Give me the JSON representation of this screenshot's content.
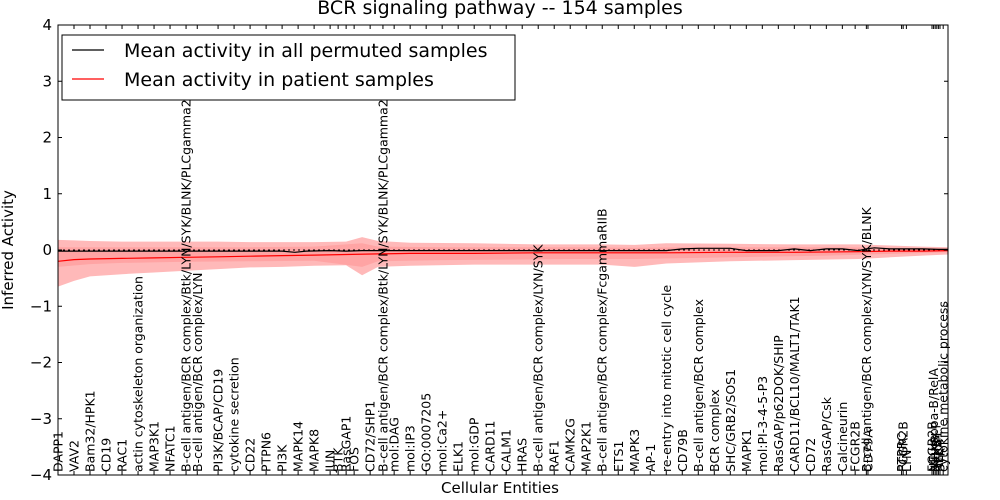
{
  "chart_data": {
    "type": "line",
    "title": "BCR signaling pathway -- 154 samples",
    "xlabel": "Cellular Entities",
    "ylabel": "Inferred Activity",
    "ylim": [
      -4,
      4
    ],
    "yticks": [
      "4",
      "3",
      "2",
      "1",
      "0",
      "−1",
      "−2",
      "−3",
      "−4"
    ],
    "ytick_values": [
      4,
      3,
      2,
      1,
      0,
      -1,
      -2,
      -3,
      -4
    ],
    "zero_line": "dotted",
    "legend": {
      "placement": "top-left",
      "entries": [
        {
          "label": "Mean activity in all permuted samples",
          "color": "#000000"
        },
        {
          "label": "Mean activity in patient samples",
          "color": "#ff0000"
        }
      ]
    },
    "colors": {
      "band": "#ff7f7f",
      "patient": "#ff0000",
      "permuted": "#000000"
    },
    "categories": [
      "DAPP1",
      "VAV2",
      "Bam32/HPK1",
      "CD19",
      "RAC1",
      "actin cytoskeleton organization",
      "MAP3K1",
      "NFATC1",
      "B-cell antigen/BCR complex/Btk/LYN/SYK/BLNK/PLCgamma2",
      "B-cell antigen/BCR complex/LYN",
      "PI3K/BCAP/CD19",
      "cytokine secretion",
      "CD22",
      "PTPN6",
      "PI3K",
      "MAPK14",
      "MAPK8",
      "JUN",
      "BTK",
      "RasGAP1",
      "FOS",
      "CD72/SHP1",
      "B-cell antigen/BCR complex/Btk/LYN/SYK/BLNK/PLCgamma2",
      "mol:DAG",
      "mol:IP3",
      "GO:0007205",
      "mol:Ca2+",
      "ELK1",
      "mol:GDP",
      "CARD11",
      "CALM1",
      "HRAS",
      "B-cell antigen/BCR complex/LYN/SYK",
      "RAF1",
      "CAMK2G",
      "MAP2K1",
      "B-cell antigen/BCR complex/FcgammaRIIB",
      "ETS1",
      "MAPK3",
      "AP-1",
      "re-entry into mitotic cell cycle",
      "CD79B",
      "B-cell antigen/BCR complex",
      "BCR complex",
      "SHC/GRB2/SOS1",
      "MAPK1",
      "mol:PI-3-4-5-P3",
      "RasGAP/p62DOK/SHIP",
      "CARD11/BCL10/MALT1/TAK1",
      "CD72",
      "RasGAP/Csk",
      "Calcineurin",
      "FCGR2B",
      "B-cell antigen/BCR complex/LYN/SYK/BLNK",
      "CD79A",
      "PTPRC",
      "FCGR2B",
      "LYN",
      "FCGR2B",
      "NF-kappa-B/RelA",
      "IKBKB",
      "NFKB1",
      "RELA",
      "SYK",
      "cytokine metabolic process"
    ],
    "category_positions": [
      0,
      1,
      2,
      3,
      4,
      5,
      6,
      7,
      8,
      8.7,
      10,
      11,
      12,
      13,
      14,
      15,
      16,
      17,
      17.5,
      18,
      18.5,
      19.5,
      20.3,
      21,
      22,
      23,
      24,
      25,
      26,
      27,
      28,
      29,
      30,
      31,
      32,
      33,
      34,
      35,
      36,
      37,
      38,
      39,
      40,
      41,
      42,
      43,
      44,
      45,
      46,
      47,
      48,
      49,
      49.8,
      50.5,
      50.6,
      52.7,
      52.8,
      53,
      54.6,
      54.7,
      54.8,
      54.9,
      55.0,
      55.1,
      55.3
    ],
    "xlim": [
      0,
      55.6
    ],
    "series": [
      {
        "name": "Mean activity in all permuted samples",
        "x": [
          0,
          2,
          4,
          6,
          8,
          10,
          12,
          14,
          14.8,
          15.5,
          17,
          18,
          19,
          20,
          22,
          24,
          26,
          28,
          30,
          32,
          34,
          36,
          38,
          39,
          40,
          41,
          42,
          43,
          44,
          45,
          46,
          47,
          48,
          49,
          50,
          50.5,
          51,
          52,
          53,
          54,
          55,
          55.6
        ],
        "values": [
          -0.02,
          -0.02,
          -0.02,
          -0.02,
          -0.02,
          -0.02,
          -0.02,
          -0.02,
          -0.04,
          -0.02,
          -0.01,
          -0.02,
          -0.01,
          -0.01,
          -0.01,
          -0.01,
          -0.01,
          -0.01,
          -0.01,
          -0.01,
          -0.01,
          -0.01,
          -0.01,
          0.02,
          0.03,
          0.03,
          0.03,
          -0.01,
          -0.01,
          -0.01,
          0.02,
          -0.01,
          0.02,
          0.02,
          -0.01,
          0.02,
          0.04,
          0.02,
          0.02,
          0.02,
          0.01,
          0.01
        ]
      },
      {
        "name": "Mean activity in patient samples",
        "x": [
          0,
          1,
          2,
          4,
          6,
          8,
          10,
          12,
          14,
          16,
          18,
          20,
          22,
          26,
          30,
          34,
          38,
          42,
          46,
          50,
          52,
          54,
          55.6
        ],
        "values": [
          -0.2,
          -0.17,
          -0.16,
          -0.15,
          -0.14,
          -0.13,
          -0.12,
          -0.11,
          -0.1,
          -0.09,
          -0.08,
          -0.07,
          -0.06,
          -0.06,
          -0.05,
          -0.05,
          -0.05,
          -0.04,
          -0.04,
          -0.03,
          -0.02,
          -0.02,
          -0.01
        ]
      }
    ],
    "bands": [
      {
        "name": "patient outer band",
        "x": [
          0,
          1,
          2,
          4,
          6,
          8,
          10,
          12,
          14,
          16,
          18,
          19,
          20,
          22,
          26,
          30,
          34,
          36,
          38,
          42,
          46,
          50,
          52,
          54,
          55.6
        ],
        "upper": [
          0.18,
          0.17,
          0.16,
          0.15,
          0.15,
          0.15,
          0.15,
          0.14,
          0.14,
          0.14,
          0.15,
          0.23,
          0.16,
          0.13,
          0.12,
          0.1,
          0.1,
          0.09,
          0.12,
          0.11,
          0.1,
          0.1,
          0.08,
          0.06,
          0.05
        ],
        "lower": [
          -0.65,
          -0.55,
          -0.47,
          -0.43,
          -0.4,
          -0.37,
          -0.34,
          -0.31,
          -0.3,
          -0.28,
          -0.27,
          -0.45,
          -0.3,
          -0.28,
          -0.26,
          -0.26,
          -0.26,
          -0.3,
          -0.24,
          -0.2,
          -0.18,
          -0.16,
          -0.13,
          -0.1,
          -0.08
        ]
      },
      {
        "name": "patient inner band",
        "x": [
          0,
          2,
          4,
          8,
          12,
          16,
          19,
          20,
          24,
          28,
          32,
          36,
          40,
          44,
          48,
          52,
          55.6
        ],
        "upper": [
          0.05,
          0.05,
          0.05,
          0.05,
          0.05,
          0.06,
          0.12,
          0.06,
          0.05,
          0.05,
          0.05,
          0.04,
          0.05,
          0.05,
          0.05,
          0.04,
          0.03
        ],
        "lower": [
          -0.3,
          -0.25,
          -0.23,
          -0.21,
          -0.2,
          -0.19,
          -0.3,
          -0.2,
          -0.18,
          -0.17,
          -0.16,
          -0.16,
          -0.14,
          -0.12,
          -0.1,
          -0.07,
          -0.04
        ]
      }
    ]
  }
}
